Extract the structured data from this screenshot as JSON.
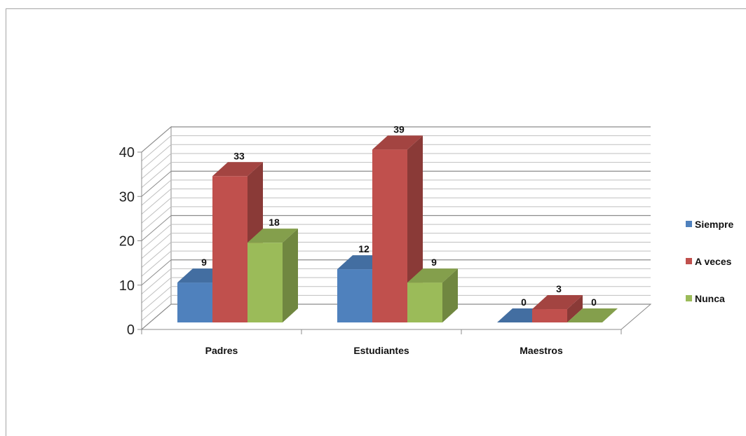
{
  "chart_data": {
    "type": "bar",
    "categories": [
      "Padres",
      "Estudiantes",
      "Maestros"
    ],
    "series": [
      {
        "name": "Siempre",
        "values": [
          9,
          12,
          0
        ],
        "color": "#4f81bd"
      },
      {
        "name": "A veces",
        "values": [
          33,
          39,
          3
        ],
        "color": "#c0504d"
      },
      {
        "name": "Nunca",
        "values": [
          18,
          9,
          0
        ],
        "color": "#9bbb59"
      }
    ],
    "ylim": [
      0,
      40
    ],
    "yticks": [
      "0",
      "10",
      "20",
      "30",
      "40"
    ],
    "minor_grid_step": 2,
    "grid": true,
    "legend": "right",
    "three_d": true
  }
}
